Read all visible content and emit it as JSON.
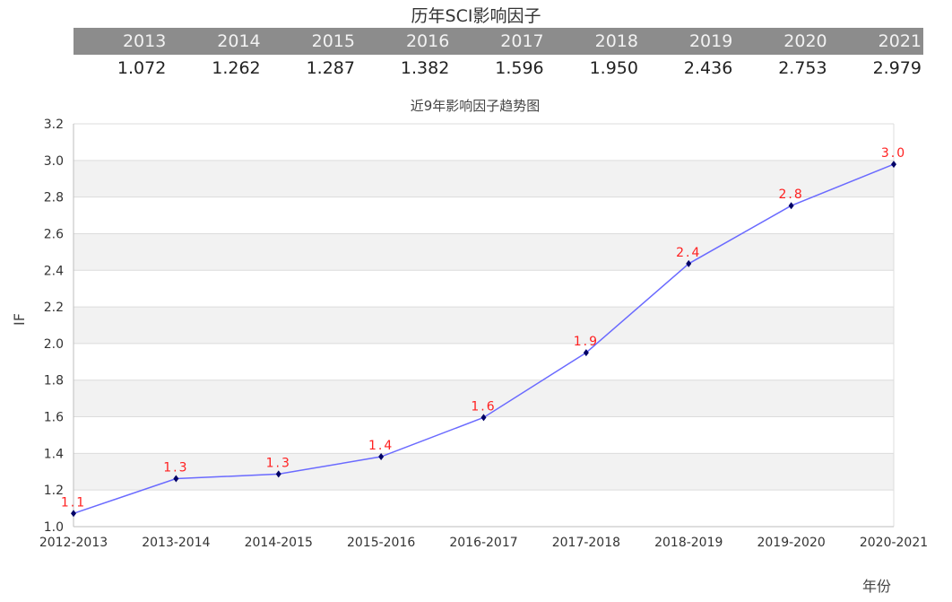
{
  "table": {
    "title": "历年SCI影响因子",
    "years": [
      "2013",
      "2014",
      "2015",
      "2016",
      "2017",
      "2018",
      "2019",
      "2020",
      "2021"
    ],
    "values": [
      "1.072",
      "1.262",
      "1.287",
      "1.382",
      "1.596",
      "1.950",
      "2.436",
      "2.753",
      "2.979"
    ]
  },
  "chart_data": {
    "type": "line",
    "title": "近9年影响因子趋势图",
    "xlabel": "年份",
    "ylabel": "IF",
    "categories": [
      "2012-2013",
      "2013-2014",
      "2014-2015",
      "2015-2016",
      "2016-2017",
      "2017-2018",
      "2018-2019",
      "2019-2020",
      "2020-2021"
    ],
    "series": [
      {
        "values": [
          1.072,
          1.262,
          1.287,
          1.382,
          1.596,
          1.95,
          2.436,
          2.753,
          2.979
        ],
        "data_labels": [
          "1.1",
          "1.3",
          "1.3",
          "1.4",
          "1.6",
          "1.9",
          "2.4",
          "2.8",
          "3.0"
        ]
      }
    ],
    "ylim": [
      1.0,
      3.2
    ],
    "yticks": [
      "1.0",
      "1.2",
      "1.4",
      "1.6",
      "1.8",
      "2.0",
      "2.2",
      "2.4",
      "2.6",
      "2.8",
      "3.0",
      "3.2"
    ],
    "grid": true,
    "line_color": "#6a6aff",
    "marker_color": "#000066",
    "label_color": "#ff2020",
    "band_color": "#f2f2f2"
  }
}
